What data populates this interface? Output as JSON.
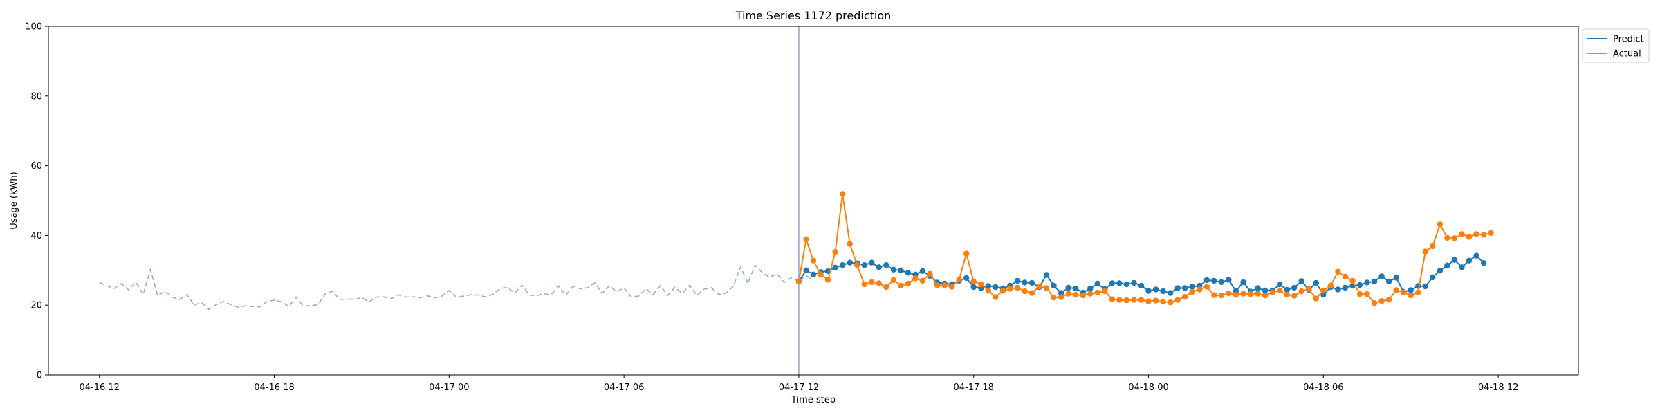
{
  "chart_data": {
    "type": "line",
    "title": "Time Series 1172 prediction",
    "xlabel": "Time step",
    "ylabel": "Usage (kWh)",
    "ylim": [
      0,
      100
    ],
    "yticks": [
      0,
      20,
      40,
      60,
      80,
      100
    ],
    "xlim": [
      "2024-04-16T10:15",
      "2024-04-18T14:45"
    ],
    "xticks": [
      {
        "t": "2024-04-16T12:00",
        "label": "04-16 12"
      },
      {
        "t": "2024-04-16T18:00",
        "label": "04-16 18"
      },
      {
        "t": "2024-04-17T00:00",
        "label": "04-17 00"
      },
      {
        "t": "2024-04-17T06:00",
        "label": "04-17 06"
      },
      {
        "t": "2024-04-17T12:00",
        "label": "04-17 12"
      },
      {
        "t": "2024-04-17T18:00",
        "label": "04-17 18"
      },
      {
        "t": "2024-04-18T00:00",
        "label": "04-18 00"
      },
      {
        "t": "2024-04-18T06:00",
        "label": "04-18 06"
      },
      {
        "t": "2024-04-18T12:00",
        "label": "04-18 12"
      }
    ],
    "interval_minutes": 15,
    "forecast_start": "2024-04-17T12:00",
    "legend_position": "top-right outside",
    "grid": false,
    "history": {
      "start": "2024-04-16T12:00",
      "color": "#97acc8",
      "style": "dashed",
      "values": [
        26.5,
        25.6,
        24.8,
        26.2,
        24.4,
        26.6,
        23.0,
        30.2,
        22.8,
        23.9,
        22.3,
        21.6,
        23.1,
        20.0,
        20.8,
        18.8,
        20.1,
        21.1,
        20.2,
        19.4,
        19.8,
        19.6,
        19.5,
        21.1,
        21.4,
        21.0,
        19.6,
        22.3,
        19.7,
        19.9,
        20.1,
        23.3,
        24.0,
        21.6,
        21.8,
        21.6,
        22.2,
        20.9,
        22.3,
        22.4,
        21.8,
        23.0,
        22.3,
        22.4,
        22.1,
        22.7,
        22.1,
        22.6,
        24.2,
        22.3,
        22.6,
        23.0,
        22.9,
        22.4,
        23.1,
        24.8,
        25.1,
        23.5,
        25.8,
        22.9,
        22.7,
        23.3,
        23.0,
        25.5,
        22.9,
        25.4,
        24.7,
        25.0,
        26.4,
        23.4,
        25.6,
        23.8,
        25.0,
        22.3,
        22.6,
        24.7,
        23.1,
        25.6,
        22.8,
        25.1,
        23.4,
        25.7,
        22.9,
        24.6,
        25.0,
        23.1,
        23.5,
        25.4,
        31.0,
        26.3,
        31.5,
        29.3,
        28.0,
        29.0,
        26.5,
        28.0,
        26.8,
        28.6,
        27.0
      ]
    },
    "series": [
      {
        "name": "Predict",
        "color": "#1f77b4",
        "start": "2024-04-17T12:00",
        "values": [
          26.8,
          30.0,
          28.8,
          29.5,
          29.8,
          30.8,
          31.5,
          32.2,
          32.0,
          31.5,
          32.2,
          30.9,
          31.5,
          30.2,
          30.0,
          29.3,
          28.8,
          29.8,
          28.4,
          26.5,
          26.2,
          26.0,
          27.0,
          27.8,
          25.2,
          24.9,
          25.5,
          25.2,
          24.8,
          25.6,
          27.0,
          26.5,
          26.4,
          25.2,
          28.7,
          25.6,
          23.5,
          25.0,
          24.8,
          23.6,
          24.8,
          26.2,
          24.6,
          26.3,
          26.3,
          26.0,
          26.4,
          25.6,
          24.1,
          24.5,
          24.0,
          23.5,
          24.9,
          24.9,
          25.3,
          25.6,
          27.2,
          27.0,
          26.6,
          27.3,
          24.0,
          26.6,
          23.9,
          24.9,
          24.2,
          24.2,
          26.0,
          24.4,
          25.0,
          26.9,
          24.4,
          26.4,
          23.0,
          25.2,
          24.5,
          25.0,
          25.6,
          25.8,
          26.5,
          26.8,
          28.3,
          26.8,
          27.9,
          23.8,
          24.3,
          25.5,
          25.4,
          28.0,
          29.9,
          31.4,
          33.0,
          30.9,
          32.8,
          34.2,
          32.1
        ]
      },
      {
        "name": "Actual",
        "color": "#ff7f0e",
        "start": "2024-04-17T12:00",
        "values": [
          26.8,
          38.9,
          32.8,
          28.8,
          27.3,
          35.3,
          51.9,
          37.6,
          31.5,
          26.0,
          26.6,
          26.3,
          25.2,
          27.2,
          25.6,
          26.2,
          27.7,
          27.0,
          29.0,
          25.7,
          25.7,
          25.3,
          27.3,
          34.8,
          26.8,
          26.0,
          24.2,
          22.3,
          24.1,
          24.7,
          25.0,
          24.0,
          23.5,
          25.4,
          24.9,
          22.2,
          22.3,
          23.3,
          23.0,
          22.8,
          23.3,
          23.6,
          24.0,
          21.7,
          21.5,
          21.4,
          21.5,
          21.5,
          21.1,
          21.3,
          21.0,
          20.8,
          21.5,
          22.4,
          23.8,
          24.5,
          25.3,
          22.9,
          22.8,
          23.4,
          23.0,
          23.3,
          23.2,
          23.3,
          22.8,
          23.7,
          24.2,
          23.0,
          22.7,
          24.0,
          24.6,
          21.9,
          24.2,
          25.6,
          29.6,
          28.2,
          27.0,
          23.2,
          23.2,
          20.6,
          21.2,
          21.6,
          24.3,
          23.7,
          22.8,
          23.7,
          35.4,
          36.9,
          43.2,
          39.3,
          39.2,
          40.4,
          39.6,
          40.4,
          40.2,
          40.7
        ]
      }
    ]
  }
}
